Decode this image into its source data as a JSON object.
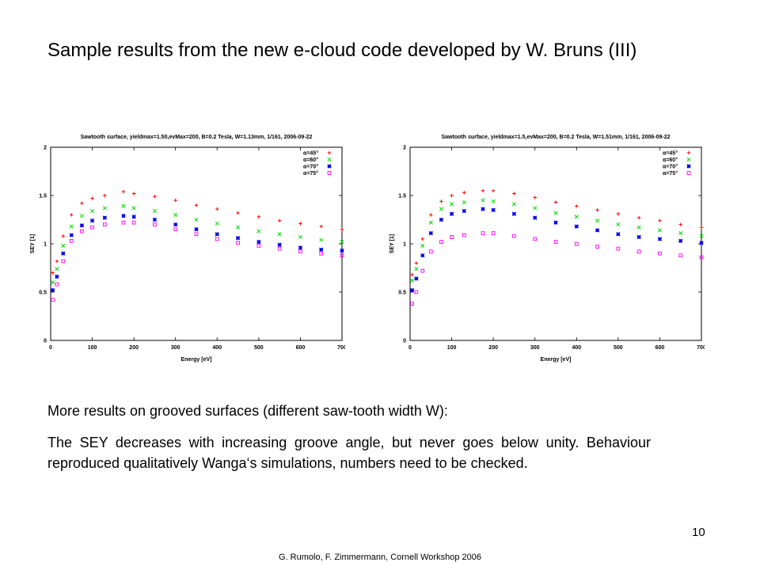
{
  "slide": {
    "title": "Sample results from the new e-cloud code developed by W. Bruns (III)",
    "paragraph_1": "More results on grooved surfaces (different saw-tooth width W):",
    "paragraph_2": "The SEY decreases with increasing groove angle, but never goes below unity. Behaviour reproduced qualitatively Wanga‘s simulations, numbers need to be checked.",
    "page_number": "10",
    "footer": "G. Rumolo, F. Zimmermann, Cornell Workshop 2006"
  },
  "chart_data": [
    {
      "type": "scatter",
      "title": "Sawtooth surface, yieldmax=1.50,evMax=200, B=0.2 Tesla, W=1.13mm, 1/161, 2006-09-22",
      "xlabel": "Energy [eV]",
      "ylabel": "SEY [1]",
      "xlim": [
        0,
        700
      ],
      "ylim": [
        0,
        2
      ],
      "xticks": [
        0,
        100,
        200,
        300,
        400,
        500,
        600,
        700
      ],
      "yticks": [
        "0",
        "0.5",
        "1",
        "1.5",
        "2"
      ],
      "yticks_values": [
        0,
        0.5,
        1,
        1.5,
        2
      ],
      "grid": false,
      "legend_position": "top-right",
      "series": [
        {
          "name": "α=45°",
          "color": "#ff0000",
          "marker": "plus",
          "x": [
            5,
            15,
            30,
            50,
            75,
            100,
            130,
            175,
            200,
            250,
            300,
            350,
            400,
            450,
            500,
            550,
            600,
            650,
            700
          ],
          "y": [
            0.7,
            0.82,
            1.08,
            1.3,
            1.42,
            1.47,
            1.5,
            1.54,
            1.52,
            1.49,
            1.45,
            1.4,
            1.36,
            1.32,
            1.28,
            1.24,
            1.21,
            1.18,
            1.15
          ]
        },
        {
          "name": "α=60°",
          "color": "#00dd00",
          "marker": "cross",
          "x": [
            5,
            15,
            30,
            50,
            75,
            100,
            130,
            175,
            200,
            250,
            300,
            350,
            400,
            450,
            500,
            550,
            600,
            650,
            700
          ],
          "y": [
            0.6,
            0.74,
            0.98,
            1.18,
            1.29,
            1.34,
            1.37,
            1.39,
            1.37,
            1.34,
            1.3,
            1.25,
            1.21,
            1.17,
            1.13,
            1.1,
            1.07,
            1.04,
            1.02
          ]
        },
        {
          "name": "α=70°",
          "color": "#0000ee",
          "marker": "star",
          "x": [
            5,
            15,
            30,
            50,
            75,
            100,
            130,
            175,
            200,
            250,
            300,
            350,
            400,
            450,
            500,
            550,
            600,
            650,
            700
          ],
          "y": [
            0.52,
            0.66,
            0.9,
            1.09,
            1.19,
            1.24,
            1.27,
            1.29,
            1.28,
            1.25,
            1.2,
            1.15,
            1.1,
            1.06,
            1.02,
            0.99,
            0.96,
            0.94,
            0.93
          ]
        },
        {
          "name": "α=75°",
          "color": "#ff00ff",
          "marker": "square",
          "x": [
            5,
            15,
            30,
            50,
            75,
            100,
            130,
            175,
            200,
            250,
            300,
            350,
            400,
            450,
            500,
            550,
            600,
            650,
            700
          ],
          "y": [
            0.42,
            0.58,
            0.82,
            1.03,
            1.13,
            1.17,
            1.2,
            1.22,
            1.22,
            1.2,
            1.15,
            1.1,
            1.05,
            1.01,
            0.98,
            0.95,
            0.92,
            0.9,
            0.88
          ]
        }
      ]
    },
    {
      "type": "scatter",
      "title": "Sawtooth surface, yieldmax=1.5,evMax=200, B=0.2 Tesla, W=1.51mm, 1/161, 2006-09-22",
      "xlabel": "Energy [eV]",
      "ylabel": "SEY [1]",
      "xlim": [
        0,
        700
      ],
      "ylim": [
        0,
        2
      ],
      "xticks": [
        0,
        100,
        200,
        300,
        400,
        500,
        600,
        700
      ],
      "yticks": [
        "0",
        "0.5",
        "1",
        "1.5",
        "2"
      ],
      "yticks_values": [
        0,
        0.5,
        1,
        1.5,
        2
      ],
      "grid": false,
      "legend_position": "top-right",
      "series": [
        {
          "name": "α=45°",
          "color": "#ff0000",
          "marker": "plus",
          "x": [
            5,
            15,
            30,
            50,
            75,
            100,
            130,
            175,
            200,
            250,
            300,
            350,
            400,
            450,
            500,
            550,
            600,
            650,
            700
          ],
          "y": [
            0.68,
            0.8,
            1.05,
            1.3,
            1.44,
            1.5,
            1.53,
            1.55,
            1.55,
            1.52,
            1.48,
            1.43,
            1.39,
            1.35,
            1.31,
            1.27,
            1.24,
            1.2,
            1.17
          ]
        },
        {
          "name": "α=60°",
          "color": "#00dd00",
          "marker": "cross",
          "x": [
            5,
            15,
            30,
            50,
            75,
            100,
            130,
            175,
            200,
            250,
            300,
            350,
            400,
            450,
            500,
            550,
            600,
            650,
            700
          ],
          "y": [
            0.62,
            0.74,
            0.98,
            1.22,
            1.36,
            1.41,
            1.43,
            1.45,
            1.44,
            1.41,
            1.37,
            1.32,
            1.28,
            1.24,
            1.2,
            1.17,
            1.14,
            1.11,
            1.08
          ]
        },
        {
          "name": "α=70°",
          "color": "#0000ee",
          "marker": "star",
          "x": [
            5,
            15,
            30,
            50,
            75,
            100,
            130,
            175,
            200,
            250,
            300,
            350,
            400,
            450,
            500,
            550,
            600,
            650,
            700
          ],
          "y": [
            0.52,
            0.64,
            0.88,
            1.11,
            1.25,
            1.31,
            1.34,
            1.36,
            1.35,
            1.31,
            1.27,
            1.22,
            1.18,
            1.14,
            1.1,
            1.07,
            1.05,
            1.03,
            1.01
          ]
        },
        {
          "name": "α=75°",
          "color": "#ff00ff",
          "marker": "square",
          "x": [
            5,
            15,
            30,
            50,
            75,
            100,
            130,
            175,
            200,
            250,
            300,
            350,
            400,
            450,
            500,
            550,
            600,
            650,
            700
          ],
          "y": [
            0.38,
            0.5,
            0.72,
            0.92,
            1.02,
            1.07,
            1.09,
            1.11,
            1.11,
            1.08,
            1.05,
            1.02,
            1.0,
            0.97,
            0.95,
            0.92,
            0.9,
            0.88,
            0.86
          ]
        }
      ]
    }
  ]
}
